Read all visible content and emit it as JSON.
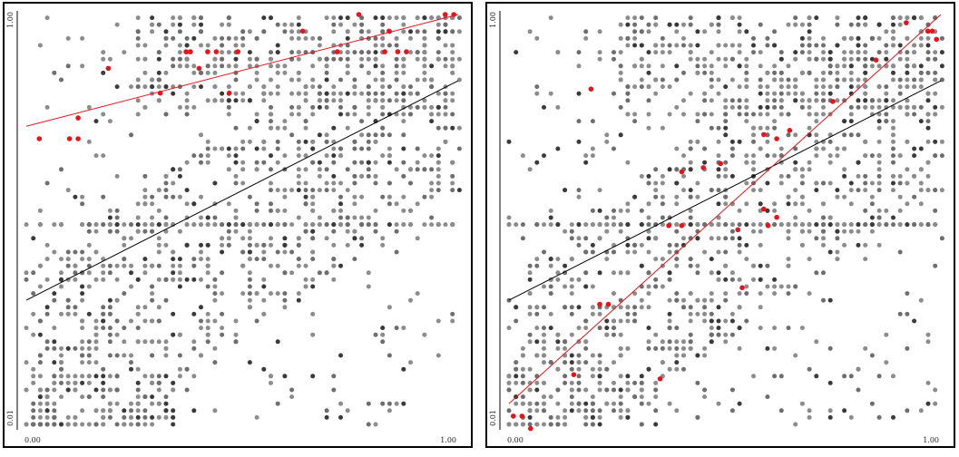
{
  "chart_data": [
    {
      "type": "scatter",
      "title": "",
      "xlabel": "",
      "ylabel": "",
      "xlim": [
        0.0,
        1.0
      ],
      "ylim": [
        0.01,
        1.0
      ],
      "x_ticks": [
        "0.00",
        "1.00"
      ],
      "y_ticks": [
        "0.01",
        "1.00"
      ],
      "grid": false,
      "background": {
        "description_values": "gray point cloud of many points spread across the plot with higher density on the diagonal band",
        "seed": 7,
        "count": 1700
      },
      "highlighted_points": {
        "color": "#e8141c",
        "points": [
          [
            0.03,
            0.7
          ],
          [
            0.1,
            0.7
          ],
          [
            0.12,
            0.7
          ],
          [
            0.12,
            0.75
          ],
          [
            0.19,
            0.87
          ],
          [
            0.31,
            0.81
          ],
          [
            0.37,
            0.91
          ],
          [
            0.38,
            0.91
          ],
          [
            0.4,
            0.87
          ],
          [
            0.42,
            0.91
          ],
          [
            0.44,
            0.91
          ],
          [
            0.47,
            0.81
          ],
          [
            0.49,
            0.91
          ],
          [
            0.64,
            0.96
          ],
          [
            0.72,
            0.91
          ],
          [
            0.77,
            1.0
          ],
          [
            0.83,
            0.91
          ],
          [
            0.84,
            0.96
          ],
          [
            0.86,
            0.91
          ],
          [
            0.88,
            0.91
          ],
          [
            0.97,
            1.0
          ],
          [
            0.99,
            1.0
          ]
        ]
      },
      "fit_lines": [
        {
          "name": "",
          "color": "#000000",
          "points": [
            [
              0.0,
              0.31
            ],
            [
              1.0,
              0.84
            ]
          ]
        },
        {
          "name": "",
          "color": "#e8141c",
          "points": [
            [
              0.0,
              0.73
            ],
            [
              1.0,
              1.0
            ]
          ]
        }
      ]
    },
    {
      "type": "scatter",
      "title": "",
      "xlabel": "",
      "ylabel": "",
      "xlim": [
        0.0,
        1.0
      ],
      "ylim": [
        0.01,
        1.0
      ],
      "x_ticks": [
        "0.00",
        "1.00"
      ],
      "y_ticks": [
        "0.01",
        "1.00"
      ],
      "grid": false,
      "background": {
        "description_values": "gray point cloud of many points spread across the plot with higher density on the diagonal band",
        "seed": 11,
        "count": 1700
      },
      "highlighted_points": {
        "color": "#e8141c",
        "points": [
          [
            0.01,
            0.03
          ],
          [
            0.03,
            0.03
          ],
          [
            0.05,
            0.0
          ],
          [
            0.15,
            0.13
          ],
          [
            0.21,
            0.3
          ],
          [
            0.23,
            0.3
          ],
          [
            0.35,
            0.12
          ],
          [
            0.37,
            0.49
          ],
          [
            0.4,
            0.49
          ],
          [
            0.4,
            0.62
          ],
          [
            0.45,
            0.63
          ],
          [
            0.49,
            0.64
          ],
          [
            0.53,
            0.48
          ],
          [
            0.54,
            0.34
          ],
          [
            0.59,
            0.53
          ],
          [
            0.59,
            0.71
          ],
          [
            0.6,
            0.49
          ],
          [
            0.62,
            0.51
          ],
          [
            0.62,
            0.7
          ],
          [
            0.65,
            0.72
          ],
          [
            0.75,
            0.79
          ],
          [
            0.85,
            0.89
          ],
          [
            0.19,
            0.82
          ],
          [
            0.92,
            0.98
          ],
          [
            0.97,
            0.96
          ],
          [
            0.98,
            0.96
          ],
          [
            0.99,
            0.94
          ]
        ]
      },
      "fit_lines": [
        {
          "name": "",
          "color": "#000000",
          "points": [
            [
              0.0,
              0.31
            ],
            [
              1.0,
              0.84
            ]
          ]
        },
        {
          "name": "",
          "color": "#e8141c",
          "points": [
            [
              0.0,
              0.06
            ],
            [
              1.0,
              1.0
            ]
          ]
        }
      ]
    }
  ]
}
